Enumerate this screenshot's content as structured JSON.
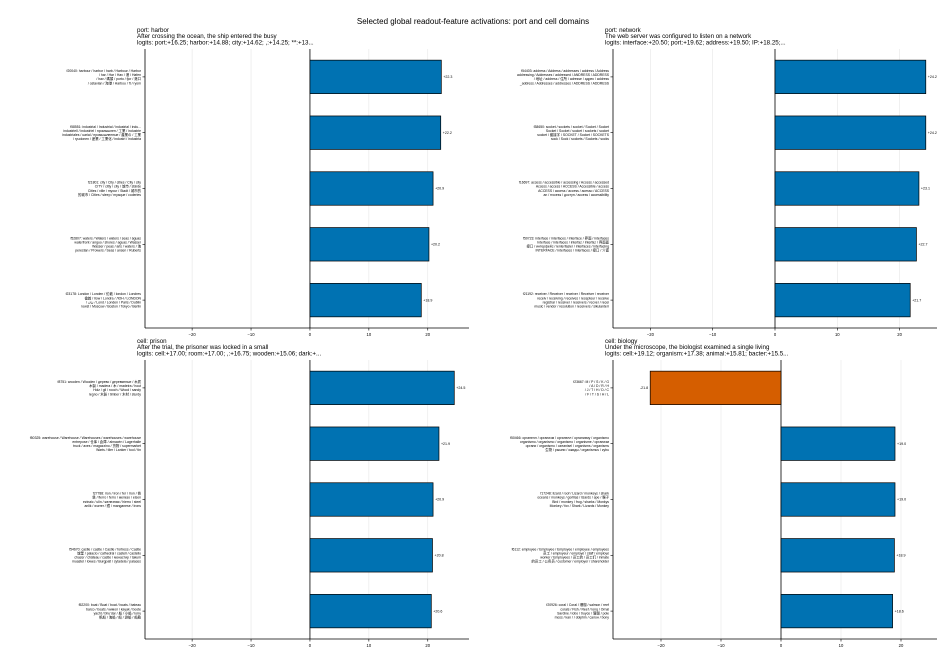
{
  "figure": {
    "title": "Selected global readout-feature activations: port and cell domains"
  },
  "colors": {
    "positive": "#0072b2",
    "negative": "#d55e00",
    "edge": "#000000",
    "grid": "#e6e6e6"
  },
  "chart_data": [
    {
      "type": "bar",
      "orientation": "horizontal",
      "title_lines": [
        "port: harbor",
        "After crossing the ocean, the ship entered the busy",
        "logits: port:+16.25; harbor:+14.88; city:+14.62; ,:+14.25; **:+13..."
      ],
      "xlim": [
        -28,
        27
      ],
      "xticks": [
        -20,
        -10,
        0,
        10,
        20
      ],
      "grid": "x",
      "categories": [
        [
          "f20040: harbour / harbor / harb / Harbour / Harbor",
          "/ har / Har / Hav / 港 / Hafen",
          "/ hav / 碼頭 / porto / fjor / 港口",
          "/ ostavlan / 海港 / Harbou / ft / ryom"
        ],
        [
          "f58551: industrial / Industrial / industrial / indu...",
          "industriell / industriel / промышлен / 工業 / industrie",
          "industriales / uarial / промышленные / 產業の / 工業",
          "/ ryudonen / 産業 / 工業化 / industri / industria"
        ],
        [
          "f21801: city / City / cities / City / city",
          "CITY / citty / city / 城市 / stärde",
          "Cities / ville / myour / Stadt / 城市的",
          "的城市 / Cities / sleep / myaque / coderies"
        ],
        [
          "f52807: waters / Waters / waters / seas / águas",
          "waterfront / anguo / shores / aguas / Wasser",
          "Wasser / peas / aris / waters / 海",
          "perestan / Prowers / Seas / ansen / Ruberts"
        ],
        [
          "f23178: London / Londen / 伦敦 / london / Londres",
          "倫敦 / Ilow / Londra / ЛОН / LONDON",
          "/ نيان / Lond / Londen / Paris / Dublin",
          "lowst / Moscow / Boston / Tokyo / Berlin"
        ]
      ],
      "values": [
        22.3,
        22.2,
        20.9,
        20.2,
        18.9
      ],
      "value_labels": [
        "+22.3",
        "+22.2",
        "+20.9",
        "+20.2",
        "+18.9"
      ]
    },
    {
      "type": "bar",
      "orientation": "horizontal",
      "title_lines": [
        "port: network",
        "The web server was configured to listen on a network",
        "logits: interface:+20.50; port:+19.62; address:+19.50; IP:+18.25;..."
      ],
      "xlim": [
        -26,
        26
      ],
      "xticks": [
        -20,
        -10,
        0,
        10,
        20
      ],
      "grid": "x",
      "categories": [
        [
          "f54403: address / Address / addresses / address / Address",
          "addressing / Addresses / addressed / ANDRESS / ADDRESS",
          "/ 地址 / address / 住所 / adresse / адрес / address",
          "_address / Addresses / addresses / ADDRESS / ADDRESS"
        ],
        [
          "f38650: socket / sockets / socket / Socket / Socket",
          "Socket / Socket / socket / sockets / socket",
          "socket / 套接字 / SOCKET / Socket / SOCKETS",
          "sock / Sock / sockets / Sockets / socks"
        ],
        [
          "f16697: access / accessible / accessing / Access / accessed",
          "Access / access / ACCESS / Accessible / access",
          "ACCESS / access / access / acesso / ACCESS",
          "an / rrocess / доступ / access / accessibility"
        ],
        [
          "f50723: interface / interfaces / Interface / 界面 / interfaces",
          "Interface / interfaces / interfaz / Interfaz / 界面面",
          "接口 / интерфейс / ienterfasler / interfaces / interfacing",
          "INTERFACE / interfaces / Interfaces / 接口 / 介面"
        ],
        [
          "f21192: receiver / Receiver / receiver / Receiver / receiver",
          "receiv / receiving / receives / recepteur / receive",
          "registrar / receiver / receivers / recver / recei",
          "music / vendor / resolution / receivers / sikulanterr"
        ]
      ],
      "values": [
        24.2,
        24.2,
        23.1,
        22.7,
        21.7
      ],
      "value_labels": [
        "+24.2",
        "+24.2",
        "+23.1",
        "+22.7",
        "+21.7"
      ]
    },
    {
      "type": "bar",
      "orientation": "horizontal",
      "title_lines": [
        "cell: prison",
        "After the trial, the prisoner was locked in a small",
        "logits: cell:+17.00; room:+17.00; ,:+16.75; wooden:+15.06; dark:+..."
      ],
      "xlim": [
        -28,
        27
      ],
      "xticks": [
        -20,
        -10,
        0,
        10,
        20
      ],
      "grid": "x",
      "categories": [
        [
          "f8751: wooden / Wooden / дерево / деревянные / 木质",
          "木製 / madera / 木 / madeira / hout",
          "Holz / gil / rooch / Wood / sandy",
          "legno / 木製 / timber / 木材 / sturdy"
        ],
        [
          "f50325: warehouse / Warehouse / Warehouses / warehouses / warehouse",
          "entrepose / 仓库 / 倉庫 / almacén / Lagerhalle",
          "truck / axes / magazzino / 货物 / supermarket",
          "Warts / tiler / Lanker / tool / tin"
        ],
        [
          "f27788: iron / Iron / fer / Iron / 铁",
          "鉄 / fierro / ferro / железо / eisen",
          "ezinaic / ulin / железная / hierro / steel",
          "anlik / wurrer / 鐵 / manganese / Irons"
        ],
        [
          "f54670: castle / castle / Castle / fortress / Castle",
          "城堡 / palacio / cathedral / castell / castello",
          "chazer / château / castle / монастир / takum",
          "muastel / Iowes / Burgpalt / cytadela / palaces"
        ],
        [
          "f52200: boat / Boat / boat / boats / bateau",
          "barco / boats / кимол / kayak / boote",
          "yacht / bhu'dar / 船 / 小船 / lorry",
          "帆船 / 海船 / 船 / 游船 / 船舶"
        ]
      ],
      "values": [
        24.5,
        21.9,
        20.9,
        20.8,
        20.6
      ],
      "value_labels": [
        "+24.5",
        "+21.9",
        "+20.9",
        "+20.8",
        "+20.6"
      ]
    },
    {
      "type": "bar",
      "orientation": "horizontal",
      "title_lines": [
        "cell: biology",
        "Under the microscope, the biologist examined a single living",
        "logits: cell:+19.12; organism:+17.38; animal:+15.81; bacter:+15.5..."
      ],
      "xlim": [
        -28,
        26
      ],
      "xticks": [
        -20,
        -10,
        0,
        10,
        20
      ],
      "grid": "x",
      "categories": [
        [
          "f23667: M / P / S / K / G",
          "/ A / D / R / H",
          "/ J / T / H / D / C",
          "/ F / T / S / H / L"
        ],
        [
          "f50466: органелл / организм / органелл / организму / organismo",
          "organismo / organismo / organismo / organisme / организм",
          "органи / organismo / ozeanisel / organisms / organisms",
          "生物 / рыыпи / ожиды / organismus / zybu"
        ],
        [
          "f17248: lizard / roof / Lizard / monkeys / shark",
          "oceans / monkeys / gorillas / lizards / ape / 猴子",
          "Bird / monkey / frog / sharks / Monkys",
          "Monkey / fox / Shark / Lizards / Monkey"
        ],
        [
          "f6112: employee / Employee / Employee / employee / employees",
          "员工 / employeur / employé / staff / employé",
          "worker / Employees / 员工的 / 员工们 / inmate",
          "的员工 / 公务员 / customer / employer / shareholder"
        ],
        [
          "f20926: coral / Coral / 珊瑚 / salmon / reef",
          "corals / Fish / Reef / lonq / Ornal",
          "Sardine / lobo / truyce / 珊瑚 / pole",
          "moss / kan / / dolphin / салон / bony"
        ]
      ],
      "values": [
        -21.8,
        19.0,
        19.0,
        18.9,
        18.6
      ],
      "value_labels": [
        "-21.8",
        "+19.0",
        "+19.0",
        "+18.9",
        "+18.6"
      ]
    }
  ]
}
